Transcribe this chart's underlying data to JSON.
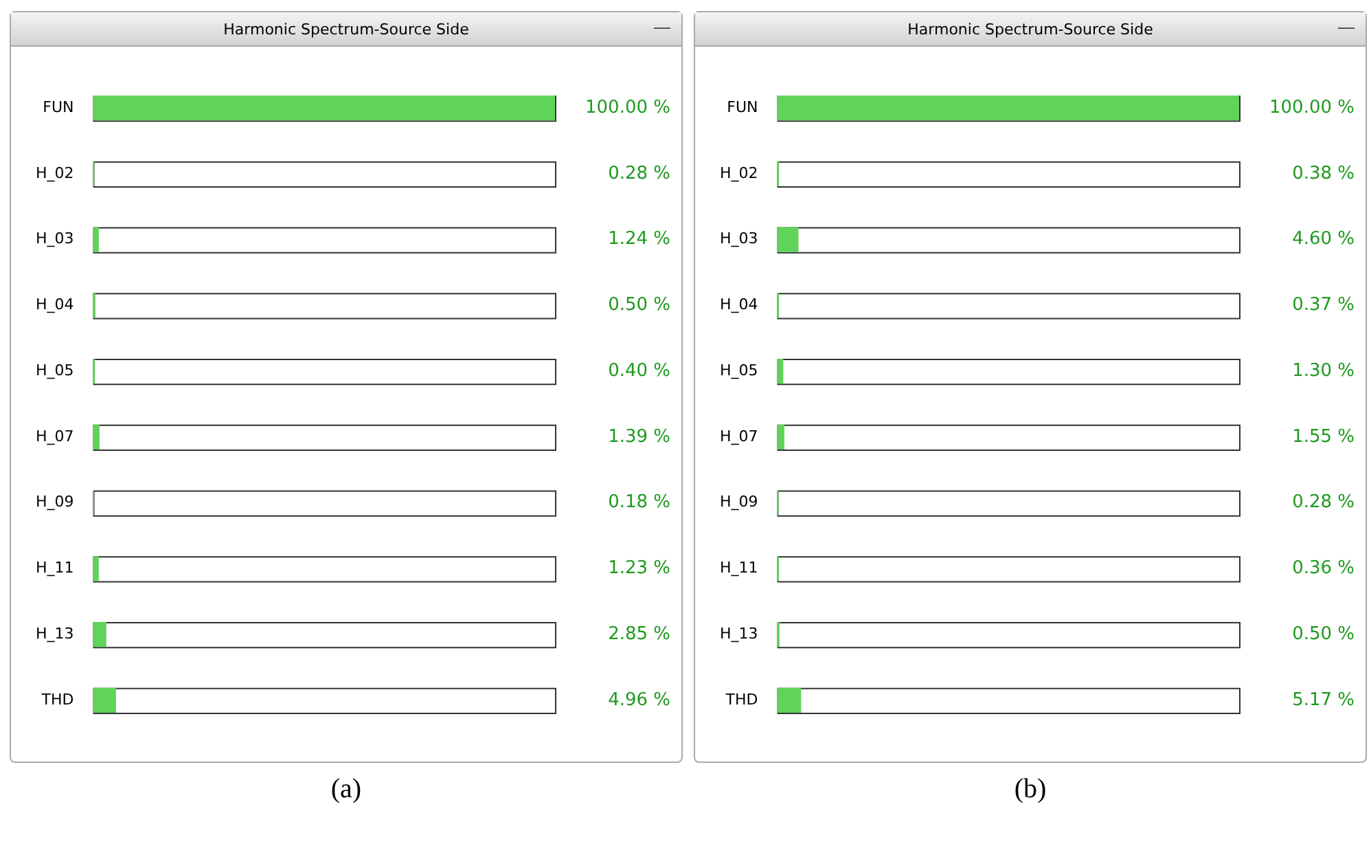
{
  "chart_data": [
    {
      "type": "bar",
      "orientation": "horizontal",
      "title": "Harmonic Spectrum-Source Side",
      "categories": [
        "FUN",
        "H_02",
        "H_03",
        "H_04",
        "H_05",
        "H_07",
        "H_09",
        "H_11",
        "H_13",
        "THD"
      ],
      "values": [
        100.0,
        0.28,
        1.24,
        0.5,
        0.4,
        1.39,
        0.18,
        1.23,
        2.85,
        4.96
      ],
      "value_labels": [
        "100.00 %",
        "0.28 %",
        "1.24 %",
        "0.50 %",
        "0.40 %",
        "1.39 %",
        "0.18 %",
        "1.23 %",
        "2.85 %",
        "4.96 %"
      ],
      "color": "#5fd35a",
      "xlim": [
        0,
        100
      ],
      "tick_labels": "y",
      "grid": false,
      "annotations": [
        "(a)"
      ]
    },
    {
      "type": "bar",
      "orientation": "horizontal",
      "title": "Harmonic Spectrum-Source Side",
      "categories": [
        "FUN",
        "H_02",
        "H_03",
        "H_04",
        "H_05",
        "H_07",
        "H_09",
        "H_11",
        "H_13",
        "THD"
      ],
      "values": [
        100.0,
        0.38,
        4.6,
        0.37,
        1.3,
        1.55,
        0.28,
        0.36,
        0.5,
        5.17
      ],
      "value_labels": [
        "100.00 %",
        "0.38 %",
        "4.60 %",
        "0.37 %",
        "1.30 %",
        "1.55 %",
        "0.28 %",
        "0.36 %",
        "0.50 %",
        "5.17 %"
      ],
      "color": "#5fd35a",
      "xlim": [
        0,
        100
      ],
      "tick_labels": "y",
      "grid": false,
      "annotations": [
        "(b)"
      ]
    }
  ]
}
